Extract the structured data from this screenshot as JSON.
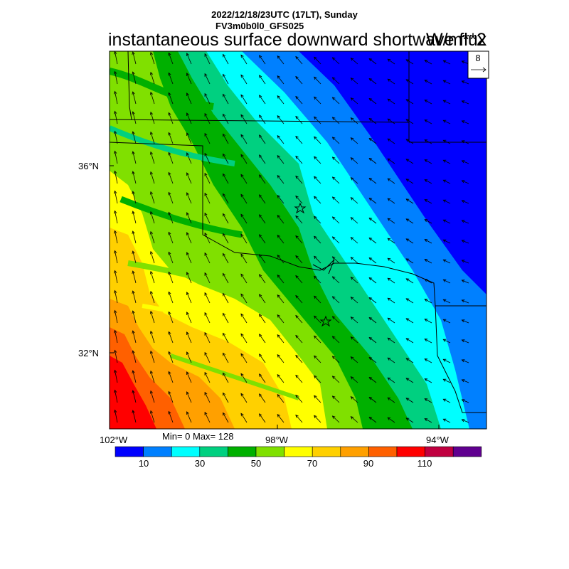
{
  "header": {
    "datetime": "2022/12/18/23UTC (17LT), Sunday",
    "model": "FV3m0b0l0_GFS025",
    "variable": "instantaneous surface downward shortwave flux",
    "units": "W/m**2"
  },
  "stats": {
    "text": "Min= 0 Max= 128"
  },
  "axes": {
    "lat_labels": [
      "36°N",
      "32°N"
    ],
    "lon_labels": [
      "102°W",
      "98°W",
      "94°W"
    ]
  },
  "vector_legend": {
    "value": "8"
  },
  "colorbar": {
    "colors": [
      "#0000ff",
      "#0080ff",
      "#00ffff",
      "#00d080",
      "#00b000",
      "#80e000",
      "#ffff00",
      "#ffd000",
      "#ffa000",
      "#ff6000",
      "#ff0000",
      "#c00040",
      "#600090"
    ],
    "labels": [
      "10",
      "30",
      "50",
      "70",
      "90",
      "110"
    ]
  },
  "chart_data": {
    "type": "heatmap",
    "lat_ticks": [
      36,
      32
    ],
    "lon_ticks": [
      -102,
      -98,
      -94
    ],
    "value_range": [
      0,
      128
    ],
    "levels": [
      10,
      30,
      50,
      70,
      90,
      110
    ]
  }
}
